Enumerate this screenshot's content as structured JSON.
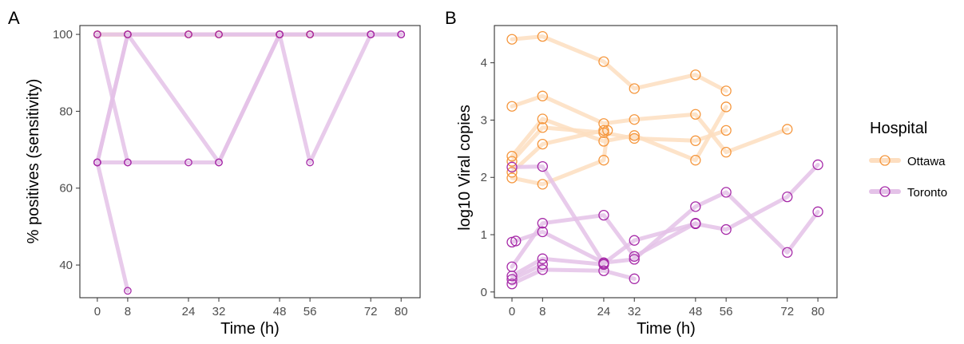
{
  "panels": {
    "a": {
      "tag": "A"
    },
    "b": {
      "tag": "B"
    }
  },
  "legend": {
    "title": "Hospital",
    "items": [
      {
        "label": "Ottawa",
        "color": "#F5963C",
        "line_color": "#FDDEC0"
      },
      {
        "label": "Toronto",
        "color": "#A62AA8",
        "line_color": "#E4C2E8"
      }
    ]
  },
  "chart_data": [
    {
      "type": "line",
      "xlabel": "Time (h)",
      "ylabel": "% positives (sensitivity)",
      "xticks": [
        0,
        8,
        24,
        32,
        48,
        56,
        72,
        80
      ],
      "yticks": [
        40,
        60,
        80,
        100
      ],
      "xlim": [
        -4.6,
        85
      ],
      "ylim": [
        31.5,
        102.3
      ],
      "grid": false,
      "series": [
        {
          "hospital": "Ottawa",
          "points": [
            [
              0,
              100
            ],
            [
              8,
              100
            ],
            [
              24,
              100
            ],
            [
              32,
              100
            ],
            [
              48,
              100
            ],
            [
              56,
              100
            ]
          ]
        },
        {
          "hospital": "Ottawa",
          "points": [
            [
              0,
              100
            ],
            [
              8,
              100
            ],
            [
              24,
              100
            ],
            [
              32,
              100
            ],
            [
              48,
              100
            ],
            [
              56,
              100
            ]
          ]
        },
        {
          "hospital": "Ottawa",
          "points": [
            [
              0,
              100
            ],
            [
              8,
              100
            ],
            [
              24,
              100
            ],
            [
              32,
              100
            ],
            [
              48,
              100
            ],
            [
              56,
              100
            ]
          ]
        },
        {
          "hospital": "Ottawa",
          "points": [
            [
              0,
              100
            ],
            [
              8,
              100
            ],
            [
              24,
              100
            ],
            [
              32,
              100
            ],
            [
              48,
              100
            ],
            [
              56,
              100
            ]
          ]
        },
        {
          "hospital": "Ottawa",
          "points": [
            [
              0,
              100
            ],
            [
              8,
              100
            ],
            [
              24,
              100
            ],
            [
              32,
              100
            ],
            [
              48,
              100
            ],
            [
              56,
              100
            ],
            [
              72,
              100
            ]
          ]
        },
        {
          "hospital": "Toronto",
          "points": [
            [
              0,
              100
            ],
            [
              8,
              100
            ],
            [
              24,
              100
            ],
            [
              32,
              100
            ],
            [
              48,
              100
            ],
            [
              56,
              100
            ],
            [
              72,
              100
            ],
            [
              80,
              100
            ]
          ]
        },
        {
          "hospital": "Toronto",
          "points": [
            [
              0,
              66.7
            ],
            [
              8,
              33.3
            ]
          ]
        },
        {
          "hospital": "Toronto",
          "points": [
            [
              0,
              100
            ],
            [
              8,
              66.7
            ],
            [
              24,
              66.7
            ],
            [
              32,
              66.7
            ],
            [
              48,
              100
            ],
            [
              56,
              100
            ],
            [
              72,
              100
            ],
            [
              80,
              100
            ]
          ]
        },
        {
          "hospital": "Toronto",
          "points": [
            [
              0,
              66.7
            ],
            [
              8,
              100
            ],
            [
              24,
              100
            ],
            [
              32,
              100
            ],
            [
              48,
              100
            ],
            [
              56,
              66.7
            ],
            [
              72,
              100
            ],
            [
              80,
              100
            ]
          ]
        },
        {
          "hospital": "Toronto",
          "points": [
            [
              0,
              66.7
            ],
            [
              8,
              100
            ],
            [
              32,
              66.7
            ],
            [
              48,
              100
            ]
          ]
        },
        {
          "hospital": "Toronto",
          "points": [
            [
              0,
              66.7
            ],
            [
              8,
              66.7
            ]
          ]
        }
      ]
    },
    {
      "type": "line",
      "xlabel": "Time (h)",
      "ylabel": "log10 Viral copies",
      "xticks": [
        0,
        8,
        24,
        32,
        48,
        56,
        72,
        80
      ],
      "yticks": [
        0,
        1,
        2,
        3,
        4
      ],
      "xlim": [
        -4.6,
        85
      ],
      "ylim": [
        -0.1,
        4.65
      ],
      "grid": false,
      "series": [
        {
          "hospital": "Ottawa",
          "points": [
            [
              0,
              4.41
            ],
            [
              8,
              4.46
            ],
            [
              24,
              4.02
            ],
            [
              32,
              3.55
            ],
            [
              48,
              3.79
            ],
            [
              56,
              3.51
            ]
          ]
        },
        {
          "hospital": "Ottawa",
          "points": [
            [
              0,
              3.24
            ],
            [
              8,
              3.42
            ],
            [
              24,
              2.94
            ],
            [
              32,
              3.01
            ],
            [
              48,
              3.1
            ],
            [
              56,
              2.44
            ],
            [
              72,
              2.84
            ]
          ]
        },
        {
          "hospital": "Ottawa",
          "points": [
            [
              0,
              2.37
            ],
            [
              8,
              3.02
            ],
            [
              24,
              2.63
            ],
            [
              32,
              2.73
            ],
            [
              48,
              2.3
            ],
            [
              56,
              3.23
            ]
          ]
        },
        {
          "hospital": "Ottawa",
          "points": [
            [
              0,
              2.28
            ],
            [
              8,
              2.87
            ],
            [
              24,
              2.78
            ],
            [
              32,
              2.68
            ],
            [
              48,
              2.64
            ],
            [
              56,
              2.82
            ]
          ]
        },
        {
          "hospital": "Ottawa",
          "points": [
            [
              0,
              1.99
            ],
            [
              8,
              1.88
            ],
            [
              24,
              2.3
            ],
            [
              25,
              2.82
            ]
          ]
        },
        {
          "hospital": "Ottawa",
          "points": [
            [
              0,
              2.09
            ],
            [
              8,
              2.58
            ],
            [
              24,
              2.82
            ]
          ]
        },
        {
          "hospital": "Toronto",
          "points": [
            [
              0,
              2.18
            ],
            [
              8,
              2.19
            ],
            [
              24,
              0.5
            ],
            [
              32,
              0.9
            ],
            [
              48,
              1.19
            ],
            [
              56,
              1.09
            ],
            [
              72,
              1.66
            ],
            [
              80,
              2.22
            ]
          ]
        },
        {
          "hospital": "Toronto",
          "points": [
            [
              0,
              0.87
            ],
            [
              8,
              1.05
            ],
            [
              24,
              0.51
            ],
            [
              32,
              0.57
            ],
            [
              48,
              1.49
            ],
            [
              56,
              1.74
            ],
            [
              72,
              0.69
            ],
            [
              80,
              1.4
            ]
          ]
        },
        {
          "hospital": "Toronto",
          "points": [
            [
              0,
              0.44
            ],
            [
              8,
              1.2
            ],
            [
              24,
              1.34
            ],
            [
              32,
              0.62
            ],
            [
              48,
              1.2
            ]
          ]
        },
        {
          "hospital": "Toronto",
          "points": [
            [
              0,
              0.28
            ],
            [
              8,
              0.58
            ],
            [
              24,
              0.48
            ]
          ]
        },
        {
          "hospital": "Toronto",
          "points": [
            [
              0,
              0.22
            ],
            [
              8,
              0.48
            ]
          ]
        },
        {
          "hospital": "Toronto",
          "points": [
            [
              0,
              0.14
            ],
            [
              8,
              0.39
            ],
            [
              24,
              0.37
            ],
            [
              32,
              0.23
            ]
          ]
        },
        {
          "hospital": "Toronto",
          "points": [
            [
              1,
              0.89
            ]
          ]
        }
      ]
    }
  ]
}
